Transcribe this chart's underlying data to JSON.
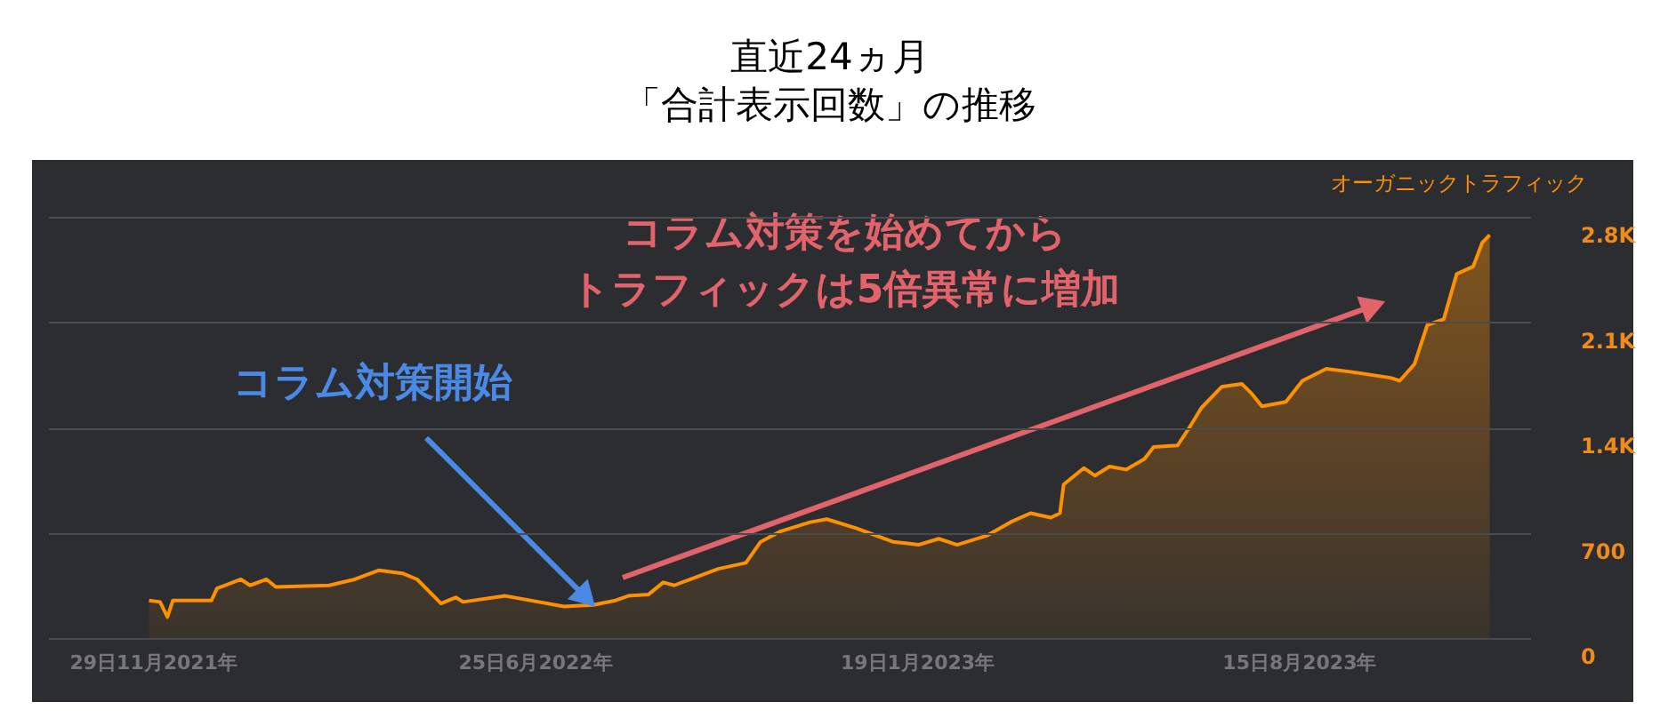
{
  "chart_data": {
    "type": "area",
    "title": "直近24ヵ月",
    "subtitle": "「合計表示回数」の推移",
    "x": [
      "2021-11-27",
      "2021-12-03",
      "2021-12-07",
      "2021-12-10",
      "2021-12-31",
      "2022-01-03",
      "2022-01-16",
      "2022-01-21",
      "2022-01-30",
      "2022-02-04",
      "2022-03-05",
      "2022-03-19",
      "2022-04-01",
      "2022-04-14",
      "2022-04-22",
      "2022-05-05",
      "2022-05-13",
      "2022-05-17",
      "2022-06-09",
      "2022-07-11",
      "2022-07-27",
      "2022-08-08",
      "2022-08-15",
      "2022-08-26",
      "2022-09-03",
      "2022-09-09",
      "2022-09-22",
      "2022-10-03",
      "2022-10-18",
      "2022-10-26",
      "2022-11-06",
      "2022-11-22",
      "2022-12-01",
      "2022-12-17",
      "2023-01-06",
      "2023-01-20",
      "2023-01-31",
      "2023-02-10",
      "2023-02-26",
      "2023-03-11",
      "2023-03-22",
      "2023-04-02",
      "2023-04-07",
      "2023-04-09",
      "2023-04-20",
      "2023-04-26",
      "2023-05-04",
      "2023-05-13",
      "2023-05-23",
      "2023-05-28",
      "2023-06-10",
      "2023-06-16",
      "2023-06-23",
      "2023-07-04",
      "2023-07-15",
      "2023-07-20",
      "2023-07-26",
      "2023-08-08",
      "2023-08-17",
      "2023-08-30",
      "2023-09-12",
      "2023-10-04",
      "2023-10-09",
      "2023-10-17",
      "2023-10-24",
      "2023-11-02",
      "2023-11-09",
      "2023-11-18",
      "2023-11-23",
      "2023-11-27"
    ],
    "series": [
      {
        "name": "オーガニックトラフィック",
        "color": "#ff9000",
        "values": [
          250,
          240,
          140,
          250,
          250,
          330,
          390,
          350,
          390,
          340,
          350,
          390,
          450,
          430,
          390,
          230,
          270,
          240,
          280,
          210,
          220,
          250,
          280,
          290,
          370,
          350,
          410,
          460,
          500,
          640,
          710,
          770,
          790,
          730,
          640,
          620,
          660,
          620,
          680,
          770,
          830,
          800,
          830,
          1020,
          1130,
          1080,
          1140,
          1120,
          1190,
          1270,
          1280,
          1390,
          1530,
          1670,
          1690,
          1630,
          1540,
          1570,
          1710,
          1790,
          1770,
          1730,
          1710,
          1820,
          2080,
          2120,
          2420,
          2470,
          2630,
          2680
        ]
      }
    ],
    "xlim": [
      "2021-10-03",
      "2023-12-19"
    ],
    "xticks": [
      {
        "value": "2021-11-29",
        "label": "29日11月2021年"
      },
      {
        "value": "2022-06-25",
        "label": "25日6月2022年"
      },
      {
        "value": "2023-01-19",
        "label": "19日1月2023年"
      },
      {
        "value": "2023-08-15",
        "label": "15日8月2023年"
      }
    ],
    "ylim": [
      0,
      2800
    ],
    "yticks": [
      0,
      700,
      {
        "value": 1400,
        "label": "1.4K"
      },
      {
        "value": 2100,
        "label": "2.1K"
      },
      {
        "value": 2800,
        "label": "2.8K"
      }
    ],
    "grid": "y",
    "legend": "top right",
    "annotations": [
      {
        "text": "コラム対策開始",
        "x": "2022-07-27",
        "y": 220
      },
      "コラム対策を始めてから",
      "トラフィックは5倍異常に増加"
    ]
  }
}
